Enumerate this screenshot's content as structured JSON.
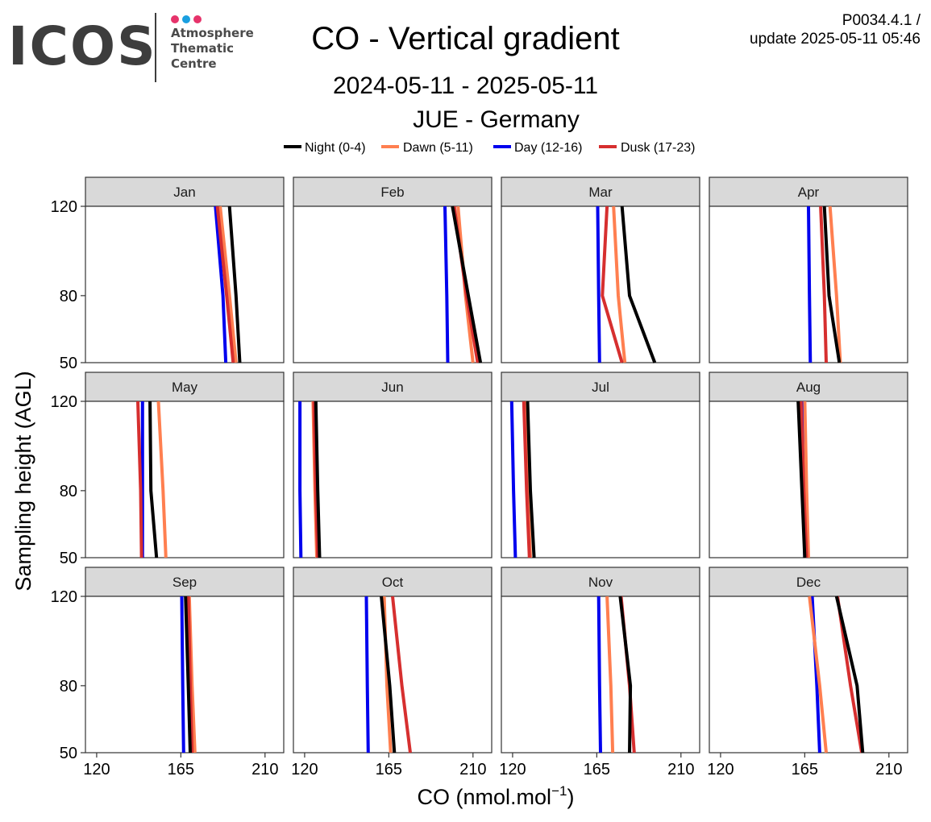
{
  "header": {
    "logo_text": "ICOS",
    "logo_sub": [
      "Atmosphere",
      "Thematic",
      "Centre"
    ],
    "logo_dot_colors": [
      "#e6336b",
      "#1a9fe0",
      "#e6336b"
    ],
    "title": "CO - Vertical gradient",
    "period": "2024-05-11 - 2025-05-11",
    "station": "JUE - Germany",
    "version_line1": "P0034.4.1 /",
    "version_line2": "update  2025-05-11 05:46"
  },
  "chart_data": {
    "type": "line",
    "title": "CO - Vertical gradient",
    "xlabel": "CO (nmol.mol",
    "xlabel_sup": "−1",
    "xlabel_close": ")",
    "ylabel": "Sampling height (AGL)",
    "xlim": [
      114,
      220
    ],
    "ylim": [
      50,
      120
    ],
    "x_ticks": [
      120,
      165,
      210
    ],
    "y_ticks": [
      50,
      80,
      120
    ],
    "heights": [
      50,
      80,
      120
    ],
    "legend_position": "top",
    "series": [
      {
        "name": "Night (0-4)",
        "color": "#000000"
      },
      {
        "name": "Dawn (5-11)",
        "color": "#ff7f50"
      },
      {
        "name": "Day (12-16)",
        "color": "#0000ee"
      },
      {
        "name": "Dusk (17-23)",
        "color": "#d62f2f"
      }
    ],
    "panels": [
      {
        "label": "Jan",
        "values": {
          "Night (0-4)": [
            196.5,
            194.5,
            191.0
          ],
          "Dawn (5-11)": [
            194.5,
            191.0,
            186.0
          ],
          "Day (12-16)": [
            189.0,
            187.5,
            183.5
          ],
          "Dusk (17-23)": [
            193.0,
            189.5,
            184.5
          ]
        }
      },
      {
        "label": "Feb",
        "values": {
          "Night (0-4)": [
            214.0,
            207.5,
            199.0
          ],
          "Dawn (5-11)": [
            210.0,
            206.0,
            202.0
          ],
          "Day (12-16)": [
            196.5,
            196.0,
            195.0
          ],
          "Dusk (17-23)": [
            212.5,
            206.5,
            200.0
          ]
        }
      },
      {
        "label": "Mar",
        "values": {
          "Night (0-4)": [
            196.0,
            182.5,
            178.5
          ],
          "Dawn (5-11)": [
            180.0,
            176.5,
            174.0
          ],
          "Day (12-16)": [
            166.5,
            166.0,
            165.5
          ],
          "Dusk (17-23)": [
            178.5,
            168.0,
            170.5
          ]
        }
      },
      {
        "label": "Apr",
        "values": {
          "Night (0-4)": [
            183.5,
            178.0,
            175.5
          ],
          "Dawn (5-11)": [
            184.0,
            182.0,
            178.5
          ],
          "Day (12-16)": [
            168.0,
            167.5,
            167.0
          ],
          "Dusk (17-23)": [
            176.5,
            175.5,
            173.5
          ]
        }
      },
      {
        "label": "May",
        "values": {
          "Night (0-4)": [
            152.0,
            149.0,
            148.5
          ],
          "Dawn (5-11)": [
            157.0,
            155.5,
            153.0
          ],
          "Day (12-16)": [
            144.5,
            144.5,
            144.5
          ],
          "Dusk (17-23)": [
            144.0,
            143.5,
            142.0
          ]
        }
      },
      {
        "label": "Jun",
        "values": {
          "Night (0-4)": [
            128.0,
            127.0,
            126.0
          ],
          "Dawn (5-11)": [
            126.5,
            125.5,
            124.5
          ],
          "Day (12-16)": [
            118.0,
            117.5,
            117.5
          ],
          "Dusk (17-23)": [
            127.0,
            126.0,
            125.0
          ]
        }
      },
      {
        "label": "Jul",
        "values": {
          "Night (0-4)": [
            131.5,
            129.5,
            128.0
          ],
          "Dawn (5-11)": [
            129.5,
            128.0,
            126.5
          ],
          "Day (12-16)": [
            121.5,
            120.5,
            119.5
          ],
          "Dusk (17-23)": [
            129.0,
            127.5,
            126.0
          ]
        }
      },
      {
        "label": "Aug",
        "values": {
          "Night (0-4)": [
            165.0,
            163.5,
            161.5
          ],
          "Dawn (5-11)": [
            167.0,
            166.0,
            165.0
          ],
          "Day (12-16)": [
            165.0,
            164.5,
            164.0
          ],
          "Dusk (17-23)": [
            166.0,
            164.5,
            163.0
          ]
        }
      },
      {
        "label": "Sep",
        "values": {
          "Night (0-4)": [
            170.0,
            169.0,
            167.5
          ],
          "Dawn (5-11)": [
            172.5,
            171.0,
            169.5
          ],
          "Day (12-16)": [
            166.5,
            166.0,
            165.5
          ],
          "Dusk (17-23)": [
            171.0,
            170.0,
            169.0
          ]
        }
      },
      {
        "label": "Oct",
        "values": {
          "Night (0-4)": [
            168.0,
            165.5,
            161.0
          ],
          "Dawn (5-11)": [
            166.0,
            164.0,
            162.5
          ],
          "Day (12-16)": [
            154.0,
            153.5,
            153.0
          ],
          "Dusk (17-23)": [
            176.5,
            172.0,
            167.0
          ]
        }
      },
      {
        "label": "Nov",
        "values": {
          "Night (0-4)": [
            182.5,
            183.0,
            177.5
          ],
          "Dawn (5-11)": [
            173.5,
            172.5,
            170.5
          ],
          "Day (12-16)": [
            167.0,
            166.5,
            166.0
          ],
          "Dusk (17-23)": [
            185.0,
            182.5,
            178.0
          ]
        }
      },
      {
        "label": "Dec",
        "values": {
          "Night (0-4)": [
            196.0,
            193.0,
            182.0
          ],
          "Dawn (5-11)": [
            176.5,
            173.0,
            167.5
          ],
          "Day (12-16)": [
            173.0,
            171.5,
            169.0
          ],
          "Dusk (17-23)": [
            195.5,
            189.5,
            182.5
          ]
        }
      }
    ]
  }
}
